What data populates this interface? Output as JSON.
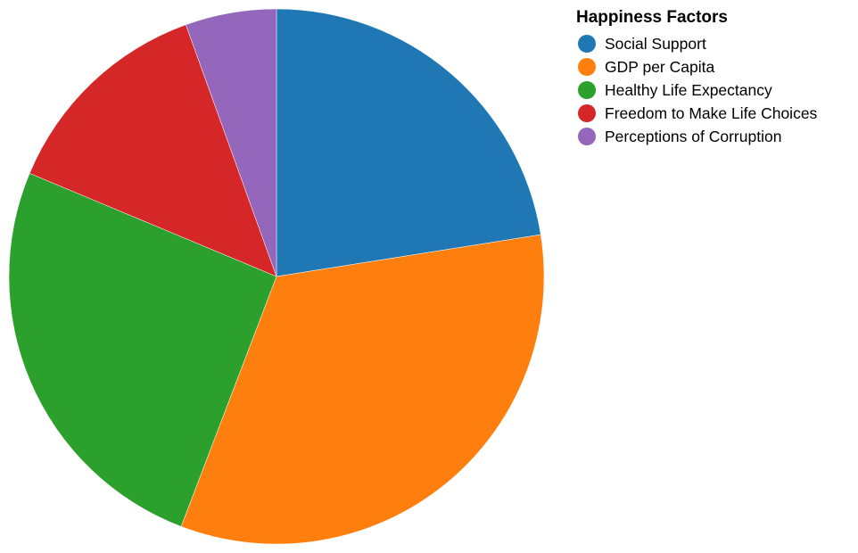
{
  "chart_data": {
    "type": "pie",
    "categories": [
      "Social Support",
      "GDP per Capita",
      "Healthy Life Expectancy",
      "Freedom to Make Life Choices",
      "Perceptions of Corruption"
    ],
    "values": [
      22.5,
      33.3,
      25.5,
      13.2,
      5.5
    ],
    "colors": [
      "#1f77b4",
      "#ff7f0e",
      "#2ca02c",
      "#d62728",
      "#9467bd"
    ],
    "legend_title": "Happiness Factors",
    "legend_position": "top-right",
    "start_angle_deg": 0,
    "direction": "clockwise"
  }
}
